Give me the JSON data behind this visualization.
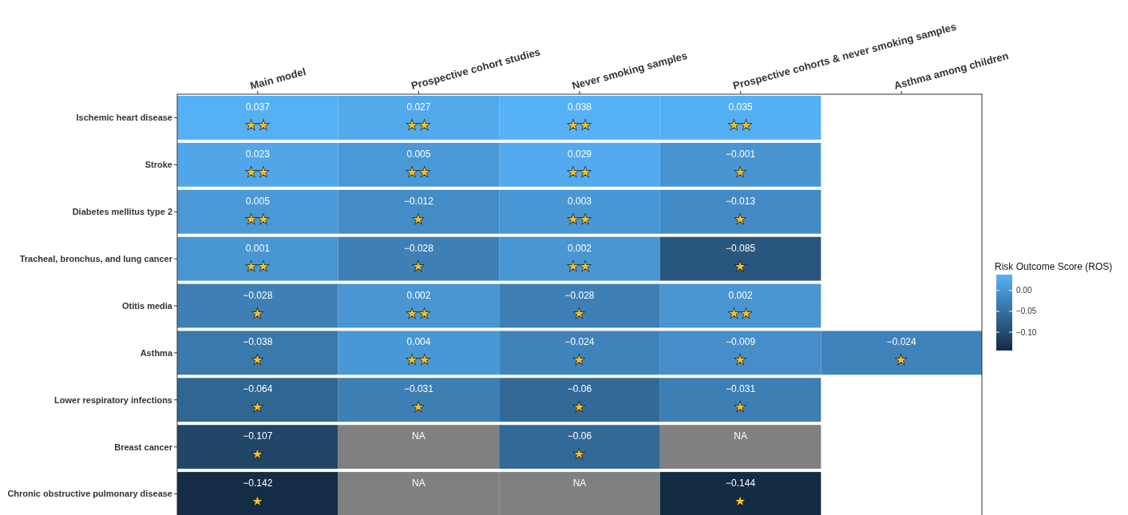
{
  "chart_data": {
    "type": "heatmap",
    "clabel": "Risk Outcome Score (ROS)",
    "categories": [
      "Main model",
      "Prospective cohort studies",
      "Never smoking samples",
      "Prospective cohorts & never smoking samples",
      "Asthma among children"
    ],
    "y_categories": [
      "Ischemic heart disease",
      "Stroke",
      "Diabetes mellitus type 2",
      "Tracheal, bronchus, and lung cancer",
      "Otitis media",
      "Asthma",
      "Lower respiratory infections",
      "Breast cancer",
      "Chronic obstructive pulmonary disease"
    ],
    "cells": [
      [
        0.037,
        0.027,
        0.038,
        0.035,
        null
      ],
      [
        0.023,
        0.005,
        0.029,
        -0.001,
        null
      ],
      [
        0.005,
        -0.012,
        0.003,
        -0.013,
        null
      ],
      [
        0.001,
        -0.028,
        0.002,
        -0.085,
        null
      ],
      [
        -0.028,
        0.002,
        -0.028,
        0.002,
        null
      ],
      [
        -0.038,
        0.004,
        -0.024,
        -0.009,
        -0.024
      ],
      [
        -0.064,
        -0.031,
        -0.06,
        -0.031,
        null
      ],
      [
        -0.107,
        null,
        -0.06,
        null,
        null
      ],
      [
        -0.142,
        null,
        null,
        -0.144,
        null
      ]
    ],
    "cell_labels": [
      [
        "0.037\n★★",
        "0.027\n★★",
        "0.038\n★★",
        "0.035\n★★",
        null
      ],
      [
        "0.023\n★★",
        "0.005\n★★",
        "0.029\n★★",
        "−0.001\n★",
        null
      ],
      [
        "0.005\n★★",
        "−0.012\n★",
        "0.003\n★★",
        "−0.013\n★",
        null
      ],
      [
        "0.001\n★★",
        "−0.028\n★",
        "0.002\n★★",
        "−0.085\n★",
        null
      ],
      [
        "−0.028\n★",
        "0.002\n★★",
        "−0.028\n★",
        "0.002\n★★",
        null
      ],
      [
        "−0.038\n★",
        "0.004\n★★",
        "−0.024\n★",
        "−0.009\n★",
        "−0.024\n★"
      ],
      [
        "−0.064\n★",
        "−0.031\n★",
        "−0.06\n★",
        "−0.031\n★",
        null
      ],
      [
        "−0.107\n★",
        "NA",
        "−0.06\n★",
        "NA",
        null
      ],
      [
        "−0.142\n★",
        "NA",
        "NA",
        "−0.144\n★",
        null
      ]
    ],
    "clim": [
      -0.144,
      0.038
    ],
    "cticks": [
      {
        "value": 0,
        "label": "0.00"
      },
      {
        "value": -0.05,
        "label": "−0.05"
      },
      {
        "value": -0.1,
        "label": "−0.10"
      }
    ]
  }
}
